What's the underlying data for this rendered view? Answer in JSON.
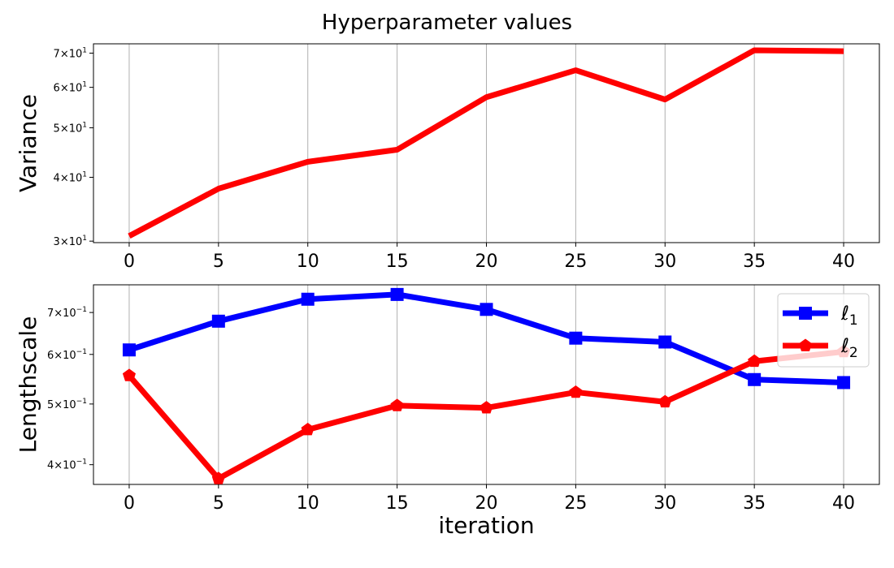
{
  "title": "Hyperparameter values",
  "chart_data": [
    {
      "type": "line",
      "ylabel": "Variance",
      "xlabel": "",
      "yscale": "log",
      "x": [
        0,
        5,
        10,
        15,
        20,
        25,
        30,
        35,
        40
      ],
      "xticks": [
        "0",
        "5",
        "10",
        "15",
        "20",
        "25",
        "30",
        "35",
        "40"
      ],
      "ylim": [
        29.8,
        73
      ],
      "yticks": [
        {
          "value": 30,
          "mantissa": "3",
          "exp": "1"
        },
        {
          "value": 40,
          "mantissa": "4",
          "exp": "1"
        },
        {
          "value": 50,
          "mantissa": "5",
          "exp": "1"
        },
        {
          "value": 60,
          "mantissa": "6",
          "exp": "1"
        },
        {
          "value": 70,
          "mantissa": "7",
          "exp": "1"
        }
      ],
      "grid": "vertical",
      "series": [
        {
          "color": "#ff0000",
          "marker": "none",
          "values": [
            30.7,
            38.0,
            42.9,
            45.3,
            57.4,
            64.8,
            56.8,
            70.9,
            70.6
          ]
        }
      ]
    },
    {
      "type": "line",
      "ylabel": "Lengthscale",
      "xlabel": "iteration",
      "yscale": "log",
      "x": [
        0,
        5,
        10,
        15,
        20,
        25,
        30,
        35,
        40
      ],
      "xticks": [
        "0",
        "5",
        "10",
        "15",
        "20",
        "25",
        "30",
        "35",
        "40"
      ],
      "ylim": [
        0.372,
        0.775
      ],
      "yticks": [
        {
          "value": 0.4,
          "mantissa": "4",
          "exp": "−1"
        },
        {
          "value": 0.5,
          "mantissa": "5",
          "exp": "−1"
        },
        {
          "value": 0.6,
          "mantissa": "6",
          "exp": "−1"
        },
        {
          "value": 0.7,
          "mantissa": "7",
          "exp": "−1"
        }
      ],
      "grid": "vertical",
      "legend": "top-right",
      "series": [
        {
          "name": "ℓ",
          "subscript": "1",
          "color": "#0000ff",
          "marker": "square",
          "values": [
            0.61,
            0.678,
            0.735,
            0.748,
            0.708,
            0.637,
            0.628,
            0.547,
            0.541
          ]
        },
        {
          "name": "ℓ",
          "subscript": "2",
          "color": "#ff0000",
          "marker": "pentagon",
          "values": [
            0.555,
            0.38,
            0.455,
            0.497,
            0.493,
            0.522,
            0.504,
            0.585,
            0.606
          ]
        }
      ]
    }
  ]
}
